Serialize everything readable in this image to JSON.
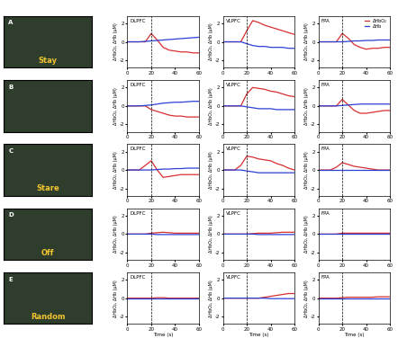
{
  "panels": [
    {
      "letter": "A",
      "label": "Stay"
    },
    {
      "letter": "B",
      "label": null
    },
    {
      "letter": "C",
      "label": "Stare"
    },
    {
      "letter": "D",
      "label": "Off"
    },
    {
      "letter": "E",
      "label": "Random"
    }
  ],
  "chart_data": [
    {
      "type": "line",
      "title": "DLPFC",
      "ylabel": "ΔHbO₂, ΔHb (μM)",
      "onset": 20,
      "x": [
        0,
        5,
        10,
        15,
        20,
        25,
        30,
        35,
        40,
        45,
        50,
        55,
        60
      ],
      "xlim": [
        0,
        60
      ],
      "xticks": [
        0,
        20,
        40,
        60
      ],
      "ylim": [
        -2.8,
        2.8
      ],
      "yticks": [
        -2,
        0,
        2
      ],
      "series": [
        {
          "name": "ΔHbO₂",
          "color": "#d62f2f",
          "values": [
            0,
            0,
            0,
            0,
            0.9,
            0.2,
            -0.6,
            -0.9,
            -1.0,
            -1.1,
            -1.1,
            -1.2,
            -1.2
          ]
        },
        {
          "name": "ΔHb",
          "color": "#2b3fd4",
          "values": [
            0,
            0,
            0,
            0.05,
            0.1,
            0.15,
            0.2,
            0.25,
            0.3,
            0.35,
            0.4,
            0.45,
            0.5
          ]
        }
      ]
    },
    {
      "type": "line",
      "title": "VLPFC",
      "ylabel": "ΔHbO₂, ΔHb (μM)",
      "onset": 20,
      "x": [
        0,
        5,
        10,
        15,
        20,
        25,
        30,
        35,
        40,
        45,
        50,
        55,
        60
      ],
      "xlim": [
        0,
        60
      ],
      "xticks": [
        0,
        20,
        40,
        60
      ],
      "ylim": [
        -2.8,
        2.8
      ],
      "yticks": [
        -2,
        0,
        2
      ],
      "series": [
        {
          "name": "ΔHbO₂",
          "color": "#d62f2f",
          "values": [
            0,
            0,
            0,
            0,
            1.2,
            2.3,
            2.1,
            1.8,
            1.6,
            1.4,
            1.2,
            1.0,
            0.8
          ]
        },
        {
          "name": "ΔHb",
          "color": "#2b3fd4",
          "values": [
            0,
            0,
            0,
            0,
            -0.2,
            -0.4,
            -0.5,
            -0.5,
            -0.6,
            -0.6,
            -0.6,
            -0.7,
            -0.7
          ]
        }
      ]
    },
    {
      "type": "line",
      "title": "FPA",
      "ylabel": "ΔHbO₂, ΔHb (μM)",
      "onset": 20,
      "legend": "upper right",
      "x": [
        0,
        5,
        10,
        15,
        20,
        25,
        30,
        35,
        40,
        45,
        50,
        55,
        60
      ],
      "xlim": [
        0,
        60
      ],
      "xticks": [
        0,
        20,
        40,
        60
      ],
      "ylim": [
        -2.8,
        2.8
      ],
      "yticks": [
        -2,
        0,
        2
      ],
      "series": [
        {
          "name": "ΔHbO₂",
          "color": "#d62f2f",
          "values": [
            0,
            0,
            0,
            0,
            0.9,
            0.4,
            -0.3,
            -0.6,
            -0.8,
            -0.7,
            -0.7,
            -0.6,
            -0.6
          ]
        },
        {
          "name": "ΔHb",
          "color": "#2b3fd4",
          "values": [
            0,
            0,
            0,
            0,
            0,
            0.05,
            0.1,
            0.1,
            0.15,
            0.15,
            0.2,
            0.2,
            0.2
          ]
        }
      ]
    },
    {
      "type": "line",
      "title": "DLPFC",
      "ylabel": "ΔHbO₂, ΔHb (μM)",
      "onset": 20,
      "x": [
        0,
        5,
        10,
        15,
        20,
        25,
        30,
        35,
        40,
        45,
        50,
        55,
        60
      ],
      "xlim": [
        0,
        60
      ],
      "xticks": [
        0,
        20,
        40,
        60
      ],
      "ylim": [
        -2.8,
        2.8
      ],
      "yticks": [
        -2,
        0,
        2
      ],
      "series": [
        {
          "name": "ΔHbO₂",
          "color": "#d62f2f",
          "values": [
            0,
            0,
            0,
            0,
            -0.4,
            -0.6,
            -0.8,
            -1.0,
            -1.1,
            -1.1,
            -1.2,
            -1.2,
            -1.2
          ]
        },
        {
          "name": "ΔHb",
          "color": "#2b3fd4",
          "values": [
            0,
            0,
            0,
            0.05,
            0.1,
            0.2,
            0.3,
            0.35,
            0.4,
            0.4,
            0.45,
            0.5,
            0.5
          ]
        }
      ]
    },
    {
      "type": "line",
      "title": "VLPFC",
      "ylabel": "ΔHbO₂, ΔHb (μM)",
      "onset": 20,
      "x": [
        0,
        5,
        10,
        15,
        20,
        25,
        30,
        35,
        40,
        45,
        50,
        55,
        60
      ],
      "xlim": [
        0,
        60
      ],
      "xticks": [
        0,
        20,
        40,
        60
      ],
      "ylim": [
        -2.8,
        2.8
      ],
      "yticks": [
        -2,
        0,
        2
      ],
      "series": [
        {
          "name": "ΔHbO₂",
          "color": "#d62f2f",
          "values": [
            0,
            0,
            0,
            0,
            1.3,
            2.0,
            1.9,
            1.8,
            1.6,
            1.5,
            1.3,
            1.1,
            1.0
          ]
        },
        {
          "name": "ΔHb",
          "color": "#2b3fd4",
          "values": [
            0,
            0,
            0,
            0,
            -0.1,
            -0.2,
            -0.3,
            -0.3,
            -0.3,
            -0.4,
            -0.4,
            -0.4,
            -0.4
          ]
        }
      ]
    },
    {
      "type": "line",
      "title": "FPA",
      "ylabel": "ΔHbO₂, ΔHb (μM)",
      "onset": 20,
      "x": [
        0,
        5,
        10,
        15,
        20,
        25,
        30,
        35,
        40,
        45,
        50,
        55,
        60
      ],
      "xlim": [
        0,
        60
      ],
      "xticks": [
        0,
        20,
        40,
        60
      ],
      "ylim": [
        -2.8,
        2.8
      ],
      "yticks": [
        -2,
        0,
        2
      ],
      "series": [
        {
          "name": "ΔHbO₂",
          "color": "#d62f2f",
          "values": [
            0,
            0,
            0,
            0,
            0.7,
            0.1,
            -0.5,
            -0.8,
            -0.8,
            -0.7,
            -0.6,
            -0.5,
            -0.5
          ]
        },
        {
          "name": "ΔHb",
          "color": "#2b3fd4",
          "values": [
            0,
            0,
            0,
            0,
            0.05,
            0.1,
            0.15,
            0.2,
            0.2,
            0.2,
            0.2,
            0.2,
            0.2
          ]
        }
      ]
    },
    {
      "type": "line",
      "title": "DLPFC",
      "ylabel": "ΔHbO₂, ΔHb (μM)",
      "onset": 20,
      "x": [
        0,
        5,
        10,
        15,
        20,
        25,
        30,
        35,
        40,
        45,
        50,
        55,
        60
      ],
      "xlim": [
        0,
        60
      ],
      "xticks": [
        0,
        20,
        40,
        60
      ],
      "ylim": [
        -2.8,
        2.8
      ],
      "yticks": [
        -2,
        0,
        2
      ],
      "series": [
        {
          "name": "ΔHbO₂",
          "color": "#d62f2f",
          "values": [
            0,
            0,
            0,
            0.5,
            1.0,
            0.0,
            -0.8,
            -0.7,
            -0.6,
            -0.5,
            -0.5,
            -0.5,
            -0.5
          ]
        },
        {
          "name": "ΔHb",
          "color": "#2b3fd4",
          "values": [
            0,
            0,
            0,
            0,
            0,
            0.05,
            0.1,
            0.1,
            0.15,
            0.15,
            0.2,
            0.2,
            0.2
          ]
        }
      ]
    },
    {
      "type": "line",
      "title": "VLPFC",
      "ylabel": "ΔHbO₂, ΔHb (μM)",
      "onset": 20,
      "x": [
        0,
        5,
        10,
        15,
        20,
        25,
        30,
        35,
        40,
        45,
        50,
        55,
        60
      ],
      "xlim": [
        0,
        60
      ],
      "xticks": [
        0,
        20,
        40,
        60
      ],
      "ylim": [
        -2.8,
        2.8
      ],
      "yticks": [
        -2,
        0,
        2
      ],
      "series": [
        {
          "name": "ΔHbO₂",
          "color": "#d62f2f",
          "values": [
            0,
            0,
            0,
            0.5,
            1.5,
            1.4,
            1.2,
            1.1,
            1.0,
            0.7,
            0.5,
            0.2,
            0.0
          ]
        },
        {
          "name": "ΔHb",
          "color": "#2b3fd4",
          "values": [
            0,
            0,
            0,
            0,
            -0.1,
            -0.2,
            -0.3,
            -0.3,
            -0.3,
            -0.3,
            -0.3,
            -0.3,
            -0.3
          ]
        }
      ]
    },
    {
      "type": "line",
      "title": "FPA",
      "ylabel": "ΔHbO₂, ΔHb (μM)",
      "onset": 20,
      "x": [
        0,
        5,
        10,
        15,
        20,
        25,
        30,
        35,
        40,
        45,
        50,
        55,
        60
      ],
      "xlim": [
        0,
        60
      ],
      "xticks": [
        0,
        20,
        40,
        60
      ],
      "ylim": [
        -2.8,
        2.8
      ],
      "yticks": [
        -2,
        0,
        2
      ],
      "series": [
        {
          "name": "ΔHbO₂",
          "color": "#d62f2f",
          "values": [
            0,
            0,
            0,
            0.3,
            0.8,
            0.6,
            0.4,
            0.3,
            0.2,
            0.1,
            0.0,
            0.0,
            0.0
          ]
        },
        {
          "name": "ΔHb",
          "color": "#2b3fd4",
          "values": [
            0,
            0,
            0,
            0,
            0,
            0,
            0,
            0,
            0,
            0,
            0,
            0,
            0
          ]
        }
      ]
    },
    {
      "type": "line",
      "title": "DLPFC",
      "ylabel": "ΔHbO₂, ΔHb (μM)",
      "onset": 20,
      "x": [
        0,
        5,
        10,
        15,
        20,
        25,
        30,
        35,
        40,
        45,
        50,
        55,
        60
      ],
      "xlim": [
        0,
        60
      ],
      "xticks": [
        0,
        20,
        40,
        60
      ],
      "ylim": [
        -2.8,
        2.8
      ],
      "yticks": [
        -2,
        0,
        2
      ],
      "series": [
        {
          "name": "ΔHbO₂",
          "color": "#d62f2f",
          "values": [
            0,
            0,
            0,
            0,
            0.1,
            0.15,
            0.2,
            0.15,
            0.1,
            0.1,
            0.1,
            0.1,
            0.1
          ]
        },
        {
          "name": "ΔHb",
          "color": "#2b3fd4",
          "values": [
            0,
            0,
            0,
            0,
            0,
            -0.05,
            -0.05,
            -0.05,
            -0.05,
            -0.05,
            -0.05,
            -0.05,
            -0.05
          ]
        }
      ]
    },
    {
      "type": "line",
      "title": "VLPFC",
      "ylabel": "ΔHbO₂, ΔHb (μM)",
      "onset": 20,
      "x": [
        0,
        5,
        10,
        15,
        20,
        25,
        30,
        35,
        40,
        45,
        50,
        55,
        60
      ],
      "xlim": [
        0,
        60
      ],
      "xticks": [
        0,
        20,
        40,
        60
      ],
      "ylim": [
        -2.8,
        2.8
      ],
      "yticks": [
        -2,
        0,
        2
      ],
      "series": [
        {
          "name": "ΔHbO₂",
          "color": "#d62f2f",
          "values": [
            0,
            0,
            0,
            0,
            0,
            0.05,
            0.1,
            0.1,
            0.1,
            0.15,
            0.2,
            0.2,
            0.2
          ]
        },
        {
          "name": "ΔHb",
          "color": "#2b3fd4",
          "values": [
            0,
            0,
            0,
            0,
            0,
            0,
            -0.05,
            -0.05,
            -0.05,
            -0.05,
            -0.05,
            -0.05,
            -0.05
          ]
        }
      ]
    },
    {
      "type": "line",
      "title": "FPA",
      "ylabel": "ΔHbO₂, ΔHb (μM)",
      "onset": 20,
      "x": [
        0,
        5,
        10,
        15,
        20,
        25,
        30,
        35,
        40,
        45,
        50,
        55,
        60
      ],
      "xlim": [
        0,
        60
      ],
      "xticks": [
        0,
        20,
        40,
        60
      ],
      "ylim": [
        -2.8,
        2.8
      ],
      "yticks": [
        -2,
        0,
        2
      ],
      "series": [
        {
          "name": "ΔHbO₂",
          "color": "#d62f2f",
          "values": [
            0,
            0,
            0,
            0,
            0.1,
            0.1,
            0.1,
            0.1,
            0.1,
            0.1,
            0.1,
            0.1,
            0.1
          ]
        },
        {
          "name": "ΔHb",
          "color": "#2b3fd4",
          "values": [
            0,
            0,
            0,
            0,
            0,
            0,
            0,
            0,
            0,
            0,
            0,
            0,
            0
          ]
        }
      ]
    },
    {
      "type": "line",
      "title": "DLPFC",
      "ylabel": "ΔHbO₂, ΔHb (μM)",
      "xlabel": "Time (s)",
      "onset": 20,
      "x": [
        0,
        5,
        10,
        15,
        20,
        25,
        30,
        35,
        40,
        45,
        50,
        55,
        60
      ],
      "xlim": [
        0,
        60
      ],
      "xticks": [
        0,
        20,
        40,
        60
      ],
      "ylim": [
        -2.8,
        2.8
      ],
      "yticks": [
        -2,
        0,
        2
      ],
      "series": [
        {
          "name": "ΔHbO₂",
          "color": "#d62f2f",
          "values": [
            0,
            0,
            0,
            0,
            0,
            0.05,
            0.05,
            0,
            0,
            0,
            0,
            0,
            0
          ]
        },
        {
          "name": "ΔHb",
          "color": "#2b3fd4",
          "values": [
            0,
            0,
            0,
            0,
            0,
            0,
            0,
            0,
            0,
            0,
            0,
            0,
            0
          ]
        }
      ]
    },
    {
      "type": "line",
      "title": "VLPFC",
      "ylabel": "ΔHbO₂, ΔHb (μM)",
      "xlabel": "Time (s)",
      "onset": 20,
      "x": [
        0,
        5,
        10,
        15,
        20,
        25,
        30,
        35,
        40,
        45,
        50,
        55,
        60
      ],
      "xlim": [
        0,
        60
      ],
      "xticks": [
        0,
        20,
        40,
        60
      ],
      "ylim": [
        -2.8,
        2.8
      ],
      "yticks": [
        -2,
        0,
        2
      ],
      "series": [
        {
          "name": "ΔHbO₂",
          "color": "#d62f2f",
          "values": [
            0,
            0,
            0,
            0,
            0,
            0,
            0,
            0.1,
            0.2,
            0.3,
            0.4,
            0.5,
            0.5
          ]
        },
        {
          "name": "ΔHb",
          "color": "#2b3fd4",
          "values": [
            0,
            0,
            0,
            0,
            0,
            0,
            0,
            0,
            -0.05,
            -0.05,
            -0.05,
            -0.05,
            -0.05
          ]
        }
      ]
    },
    {
      "type": "line",
      "title": "FPA",
      "ylabel": "ΔHbO₂, ΔHb (μM)",
      "xlabel": "Time (s)",
      "onset": 20,
      "x": [
        0,
        5,
        10,
        15,
        20,
        25,
        30,
        35,
        40,
        45,
        50,
        55,
        60
      ],
      "xlim": [
        0,
        60
      ],
      "xticks": [
        0,
        20,
        40,
        60
      ],
      "ylim": [
        -2.8,
        2.8
      ],
      "yticks": [
        -2,
        0,
        2
      ],
      "series": [
        {
          "name": "ΔHbO₂",
          "color": "#d62f2f",
          "values": [
            0,
            0,
            0,
            0,
            0.05,
            0.1,
            0.1,
            0.1,
            0.1,
            0.1,
            0.15,
            0.15,
            0.15
          ]
        },
        {
          "name": "ΔHb",
          "color": "#2b3fd4",
          "values": [
            0,
            0,
            0,
            0,
            0,
            0,
            0,
            0,
            0,
            0,
            0,
            0,
            0
          ]
        }
      ]
    }
  ]
}
